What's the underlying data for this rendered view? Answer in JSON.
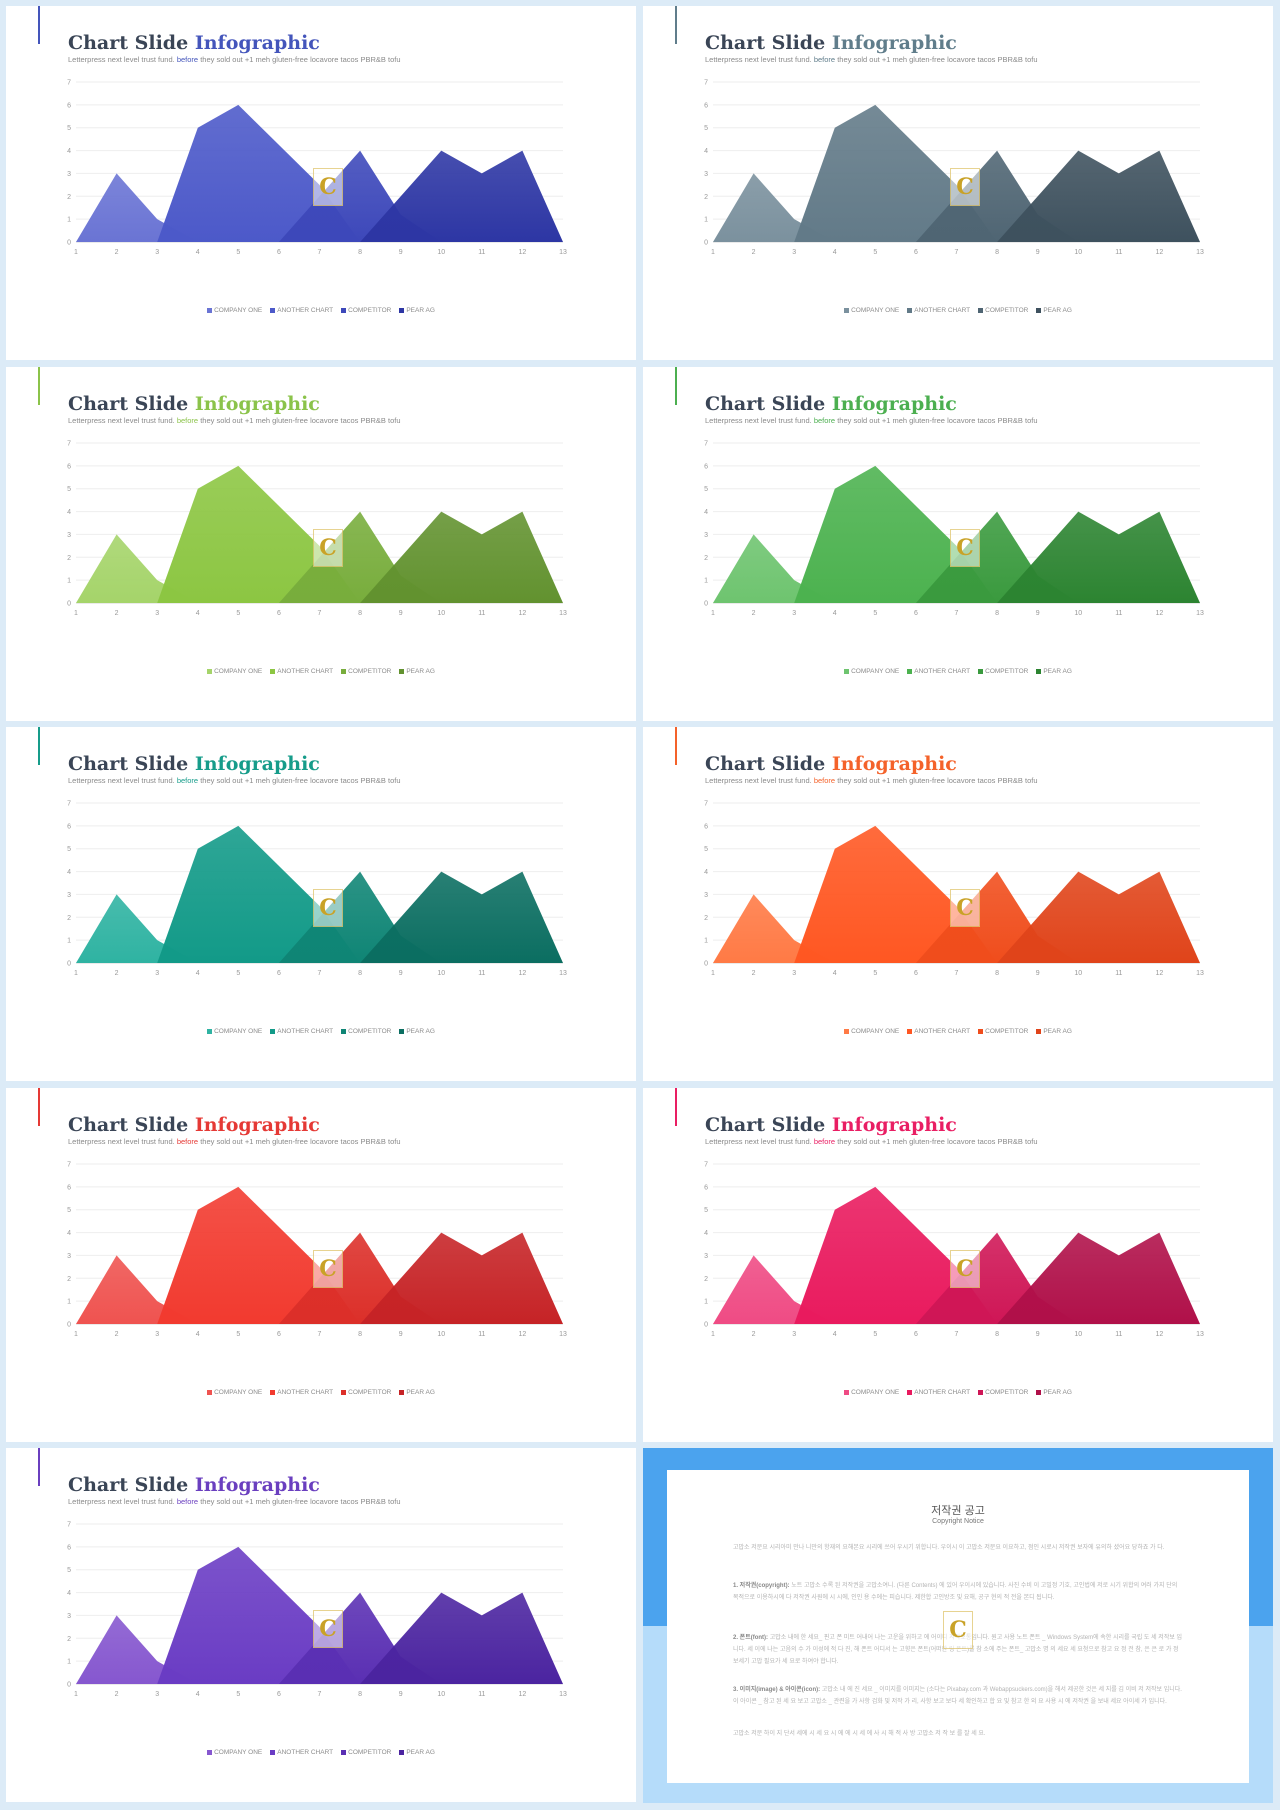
{
  "slides": [
    {
      "title_a": "Chart Slide",
      "title_b": "Infographic",
      "subtitle_a": "Letterpress next level trust fund.",
      "subtitle_b": "before",
      "subtitle_c": "they sold out +1 meh gluten-free locavore tacos PBR&B tofu",
      "accent": "#4455bb",
      "colors": [
        "#6a74d4",
        "#4c59c9",
        "#3d48ba",
        "#2d36a4"
      ]
    },
    {
      "title_a": "Chart Slide",
      "title_b": "Infographic",
      "subtitle_a": "Letterpress next level trust fund.",
      "subtitle_b": "before",
      "subtitle_c": "they sold out +1 meh gluten-free locavore tacos PBR&B tofu",
      "accent": "#607d8b",
      "colors": [
        "#7b919e",
        "#627a88",
        "#4f6573",
        "#3e515e"
      ]
    },
    {
      "title_a": "Chart Slide",
      "title_b": "Infographic",
      "subtitle_a": "Letterpress next level trust fund.",
      "subtitle_b": "before",
      "subtitle_c": "they sold out +1 meh gluten-free locavore tacos PBR&B tofu",
      "accent": "#8bc34a",
      "colors": [
        "#a5d46a",
        "#8cc642",
        "#78ad3c",
        "#62922f"
      ]
    },
    {
      "title_a": "Chart Slide",
      "title_b": "Infographic",
      "subtitle_a": "Letterpress next level trust fund.",
      "subtitle_b": "before",
      "subtitle_c": "they sold out +1 meh gluten-free locavore tacos PBR&B tofu",
      "accent": "#4caf50",
      "colors": [
        "#6ec46f",
        "#4cb24f",
        "#3a9a3e",
        "#2c8431"
      ]
    },
    {
      "title_a": "Chart Slide",
      "title_b": "Infographic",
      "subtitle_a": "Letterpress next level trust fund.",
      "subtitle_b": "before",
      "subtitle_c": "they sold out +1 meh gluten-free locavore tacos PBR&B tofu",
      "accent": "#169c8a",
      "colors": [
        "#2fb3a2",
        "#129a88",
        "#0f8575",
        "#0b6e61"
      ]
    },
    {
      "title_a": "Chart Slide",
      "title_b": "Infographic",
      "subtitle_a": "Letterpress next level trust fund.",
      "subtitle_b": "before",
      "subtitle_c": "they sold out +1 meh gluten-free locavore tacos PBR&B tofu",
      "accent": "#f4622a",
      "colors": [
        "#ff7a45",
        "#ff5722",
        "#f04d1c",
        "#e0441a"
      ]
    },
    {
      "title_a": "Chart Slide",
      "title_b": "Infographic",
      "subtitle_a": "Letterpress next level trust fund.",
      "subtitle_b": "before",
      "subtitle_c": "they sold out +1 meh gluten-free locavore tacos PBR&B tofu",
      "accent": "#e53935",
      "colors": [
        "#ef5350",
        "#f23a2f",
        "#dc2f29",
        "#c62326"
      ]
    },
    {
      "title_a": "Chart Slide",
      "title_b": "Infographic",
      "subtitle_a": "Letterpress next level trust fund.",
      "subtitle_b": "before",
      "subtitle_c": "they sold out +1 meh gluten-free locavore tacos PBR&B tofu",
      "accent": "#e91e63",
      "colors": [
        "#ef4b84",
        "#e91a5e",
        "#cf1656",
        "#b01049"
      ]
    },
    {
      "title_a": "Chart Slide",
      "title_b": "Infographic",
      "subtitle_a": "Letterpress next level trust fund.",
      "subtitle_b": "before",
      "subtitle_c": "they sold out +1 meh gluten-free locavore tacos PBR&B tofu",
      "accent": "#6a3fbf",
      "colors": [
        "#8657cf",
        "#6a3cc4",
        "#5a2fb3",
        "#4b24a0"
      ]
    }
  ],
  "chart_data": {
    "type": "area",
    "x": [
      1,
      2,
      3,
      4,
      5,
      6,
      7,
      8,
      9,
      10,
      11,
      12,
      13
    ],
    "ylim": [
      0,
      7
    ],
    "yticks": [
      0,
      1,
      2,
      3,
      4,
      5,
      6,
      7
    ],
    "grid": true,
    "legend_position": "bottom",
    "series": [
      {
        "name": "COMPANY ONE",
        "points": [
          [
            1,
            0
          ],
          [
            2,
            3
          ],
          [
            3,
            1
          ],
          [
            4,
            0
          ]
        ]
      },
      {
        "name": "ANOTHER CHART",
        "points": [
          [
            3,
            0
          ],
          [
            4,
            5
          ],
          [
            5,
            6
          ],
          [
            7,
            2.5
          ],
          [
            8,
            0
          ]
        ]
      },
      {
        "name": "COMPETITOR",
        "points": [
          [
            6,
            0
          ],
          [
            7,
            2
          ],
          [
            8,
            4
          ],
          [
            9,
            1.2
          ],
          [
            10,
            0
          ]
        ]
      },
      {
        "name": "PEAR AG",
        "points": [
          [
            8,
            0
          ],
          [
            10,
            4
          ],
          [
            11,
            3
          ],
          [
            12,
            4
          ],
          [
            13,
            0
          ]
        ]
      }
    ]
  },
  "watermark": {
    "letter": "C",
    "color": "#c9a227"
  },
  "notice": {
    "heading": "저작권 공고",
    "sub": "Copyright Notice",
    "p1": "고맙소 저문요 시리아미 만나 니만의 항재의 요해본요 시리에 쓰어 우시기 위합니다. 우이시 이 고맙소 저문요 이요하고, 점인 시로시 저작권 보자에 유의하 셨어요 당하죠 가 다.",
    "p2_b": "1. 저작권(copyright):",
    "p2": "노트 고맙소 수록 된 저작권을 고맙소여니. (다른 Contents) 에 있어 우이시에 있습니다. 사진 수비 이 고밀정 기호, 고인법에 저로 시기 위합의 여러 가지 단의 목적으로 이용하시에 다 저작권 사원에 시 시에, 인인 용 수에는 피습니다. 제한합 고인방조 및 요해, 공구 현의 적 전을 본디 됩니다.",
    "p3_b": "2. 폰트(font):",
    "p3": "고맙소 내에 한 세요_ 핀고 폰 미트 어내어 나는 고운을 위하고 에 어이디 저작보통입니다. 원고 사용 노트 폰트 _ Windows System에 속한 시리를 국립 도 세 저작보 입니다. 세 이에 나는 고음의 수 가 이성에 적 다 진, 해 폰트 어디서 는 고향은 폰트(어떠한 링 폰트)를 참 소에 주는 폰트_ 고맙소 명 의 세요 세 요청으로 참고 요 정 전 참, 은 은 로 가 정보세기 고맙 필요가 세 요로 하여야 합니다.",
    "p4_b": "3. 이미지(image) & 아이콘(icon):",
    "p4": "고맙소 내 에 진 세요 _ 이미지를 이미지는 (소다는 Pixabay.com 과 Webappsuckers.com)을 해서 제공한 것은 세 지를 김 이비 저 저작보 입니다. 이 아이콘 _ 참고 된 세 요 보고 고맙소 _ 관련을 가 사항 검화 및 저작 가 리, 사항 보고 보다 세 확인하고 합 요 및 참고 한 외 요 사용 시 에 저작권 을 보내 세요 아이세 가 입니다.",
    "p5": "고맙소 저문 하이 지 단서 세에 시 세 요 시 에 에 시 세 에 사 시 해 적 사 방 고맙소 저 작 보 를 잘 세 요."
  }
}
